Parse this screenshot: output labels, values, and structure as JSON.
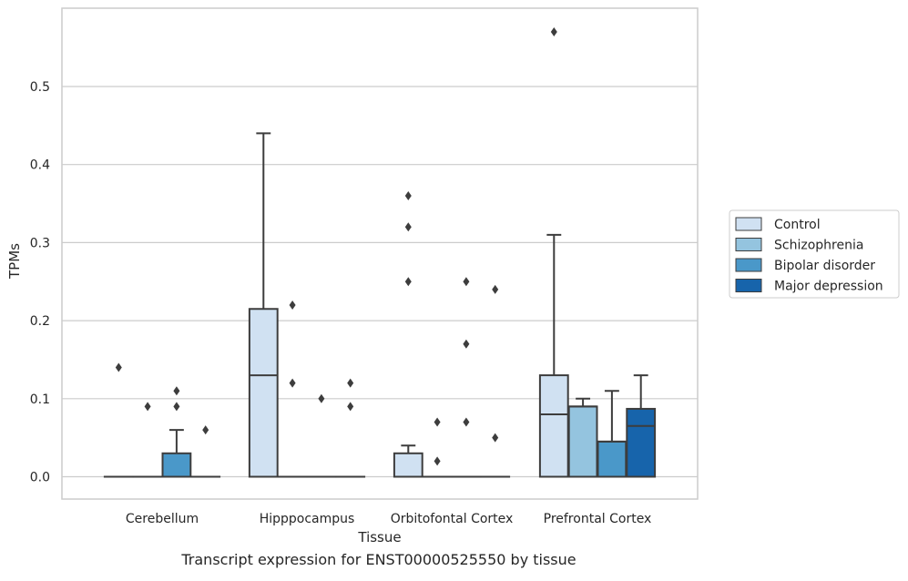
{
  "caption": "Transcript expression for ENST00000525550 by tissue",
  "chart_data": {
    "type": "box",
    "xlabel": "Tissue",
    "ylabel": "TPMs",
    "ylim": [
      -0.028,
      0.6
    ],
    "yticks": [
      0.0,
      0.1,
      0.2,
      0.3,
      0.4,
      0.5
    ],
    "ytick_labels": [
      "0.0",
      "0.1",
      "0.2",
      "0.3",
      "0.4",
      "0.5"
    ],
    "grid": true,
    "legend_position": "right",
    "categories": [
      "Cerebellum",
      "Hipppocampus",
      "Orbitofontal Cortex",
      "Prefrontal Cortex"
    ],
    "series": [
      {
        "name": "Control",
        "color": "#d0e1f2",
        "boxes": [
          {
            "q1": 0.0,
            "median": 0.0,
            "q3": 0.0,
            "whislo": 0.0,
            "whishi": 0.0,
            "fliers": [
              0.14
            ]
          },
          {
            "q1": 0.0,
            "median": 0.13,
            "q3": 0.215,
            "whislo": 0.0,
            "whishi": 0.44,
            "fliers": []
          },
          {
            "q1": 0.0,
            "median": 0.0,
            "q3": 0.03,
            "whislo": 0.0,
            "whishi": 0.04,
            "fliers": [
              0.36,
              0.32,
              0.25
            ]
          },
          {
            "q1": 0.0,
            "median": 0.08,
            "q3": 0.13,
            "whislo": 0.0,
            "whishi": 0.31,
            "fliers": [
              0.57
            ]
          }
        ]
      },
      {
        "name": "Schizophrenia",
        "color": "#94c4df",
        "boxes": [
          {
            "q1": 0.0,
            "median": 0.0,
            "q3": 0.0,
            "whislo": 0.0,
            "whishi": 0.0,
            "fliers": [
              0.09
            ]
          },
          {
            "q1": 0.0,
            "median": 0.0,
            "q3": 0.0,
            "whislo": 0.0,
            "whishi": 0.0,
            "fliers": [
              0.22,
              0.12
            ]
          },
          {
            "q1": 0.0,
            "median": 0.0,
            "q3": 0.0,
            "whislo": 0.0,
            "whishi": 0.0,
            "fliers": [
              0.07,
              0.02
            ]
          },
          {
            "q1": 0.0,
            "median": 0.09,
            "q3": 0.09,
            "whislo": 0.0,
            "whishi": 0.1,
            "fliers": []
          }
        ]
      },
      {
        "name": "Bipolar disorder",
        "color": "#4a98c9",
        "boxes": [
          {
            "q1": 0.0,
            "median": 0.0,
            "q3": 0.03,
            "whislo": 0.0,
            "whishi": 0.06,
            "fliers": [
              0.11,
              0.09
            ]
          },
          {
            "q1": 0.0,
            "median": 0.0,
            "q3": 0.0,
            "whislo": 0.0,
            "whishi": 0.0,
            "fliers": [
              0.1
            ]
          },
          {
            "q1": 0.0,
            "median": 0.0,
            "q3": 0.0,
            "whislo": 0.0,
            "whishi": 0.0,
            "fliers": [
              0.25,
              0.17,
              0.07
            ]
          },
          {
            "q1": 0.0,
            "median": 0.045,
            "q3": 0.045,
            "whislo": 0.0,
            "whishi": 0.11,
            "fliers": []
          }
        ]
      },
      {
        "name": "Major depression",
        "color": "#1764ab",
        "boxes": [
          {
            "q1": 0.0,
            "median": 0.0,
            "q3": 0.0,
            "whislo": 0.0,
            "whishi": 0.0,
            "fliers": [
              0.06
            ]
          },
          {
            "q1": 0.0,
            "median": 0.0,
            "q3": 0.0,
            "whislo": 0.0,
            "whishi": 0.0,
            "fliers": [
              0.12,
              0.09
            ]
          },
          {
            "q1": 0.0,
            "median": 0.0,
            "q3": 0.0,
            "whislo": 0.0,
            "whishi": 0.0,
            "fliers": [
              0.24,
              0.05
            ]
          },
          {
            "q1": 0.0,
            "median": 0.065,
            "q3": 0.087,
            "whislo": 0.0,
            "whishi": 0.13,
            "fliers": []
          }
        ]
      }
    ]
  }
}
